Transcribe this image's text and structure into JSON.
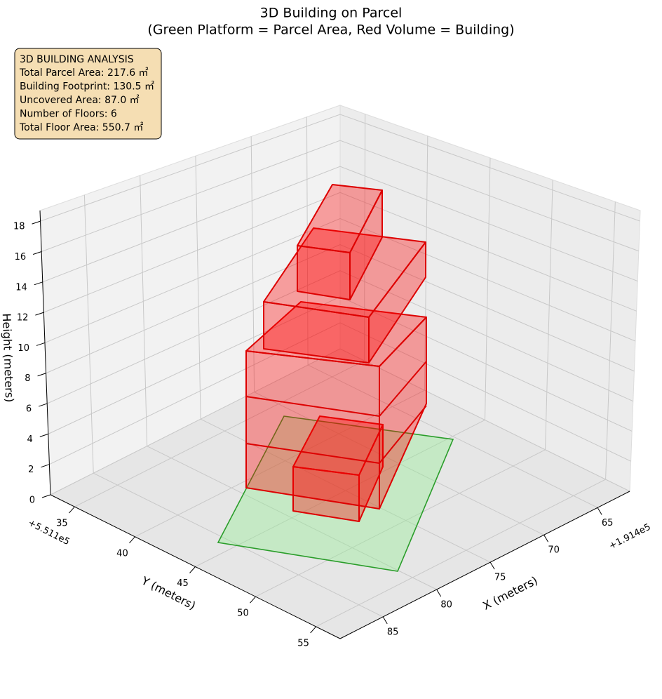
{
  "chart_data": {
    "type": "3d",
    "title": "3D Building on Parcel",
    "subtitle": "(Green Platform = Parcel Area, Red Volume = Building)",
    "xlabel": "X (meters)",
    "ylabel": "Y (meters)",
    "zlabel": "Height (meters)",
    "x_offset": "+1.914e5",
    "y_offset": "+5.511e5",
    "xlim": [
      62,
      89
    ],
    "ylim": [
      33,
      57
    ],
    "zlim": [
      0,
      18.7
    ],
    "xticks": [
      65,
      70,
      75,
      80,
      85
    ],
    "yticks": [
      35,
      40,
      45,
      50,
      55
    ],
    "zticks": [
      0,
      2,
      4,
      6,
      8,
      10,
      12,
      14,
      16,
      18
    ],
    "grid": true,
    "annotation": {
      "title": "3D BUILDING ANALYSIS",
      "lines": [
        "Total Parcel Area: 217.6 ㎡",
        "Building Footprint: 130.5 ㎡",
        "Uncovered Area: 87.0 ㎡",
        "Number of Floors: 6",
        "Total Floor Area: 550.7 ㎡"
      ]
    }
  }
}
